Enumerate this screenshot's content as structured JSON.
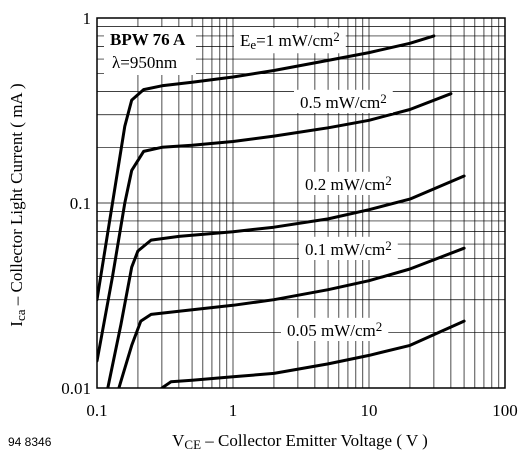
{
  "chart_data": {
    "type": "line",
    "log_x": true,
    "log_y": true,
    "grid": true,
    "xlim": [
      0.1,
      100
    ],
    "ylim": [
      0.01,
      1
    ],
    "xticks": [
      0.1,
      1,
      10,
      100
    ],
    "yticks": [
      0.01,
      0.1,
      1
    ],
    "xminor": [
      0.2,
      0.3,
      0.4,
      0.5,
      0.6,
      0.7,
      0.8,
      0.9,
      2,
      3,
      4,
      5,
      6,
      7,
      8,
      9,
      20,
      30,
      40,
      50,
      60,
      70,
      80,
      90
    ],
    "yminor": [
      0.02,
      0.03,
      0.04,
      0.05,
      0.06,
      0.07,
      0.08,
      0.09,
      0.2,
      0.3,
      0.4,
      0.5,
      0.6,
      0.7,
      0.8,
      0.9
    ],
    "device": "BPW 76 A",
    "wavelength": "λ=950nm",
    "figure_number": "94 8346",
    "x_label": [
      {
        "t": "V"
      },
      {
        "t": "CE",
        "s": "sub"
      },
      {
        "t": " – Collector Emitter Voltage ( V )"
      }
    ],
    "y_label": [
      {
        "t": "I"
      },
      {
        "t": "ca",
        "s": "sub"
      },
      {
        "t": " – Collector Light Current ( mA )"
      }
    ],
    "color": "#000000",
    "series": [
      {
        "name": [
          {
            "t": "E"
          },
          {
            "t": "e",
            "s": "sub"
          },
          {
            "t": "=1 mW/cm"
          },
          {
            "t": "2",
            "s": "sup"
          }
        ],
        "x": [
          0.1,
          0.13,
          0.16,
          0.18,
          0.22,
          0.3,
          0.5,
          1,
          2,
          5,
          10,
          20,
          30
        ],
        "values": [
          0.03,
          0.1,
          0.26,
          0.36,
          0.41,
          0.43,
          0.45,
          0.48,
          0.52,
          0.59,
          0.65,
          0.73,
          0.8
        ]
      },
      {
        "name": [
          {
            "t": "0.5 mW/cm"
          },
          {
            "t": "2",
            "s": "sup"
          }
        ],
        "x": [
          0.1,
          0.13,
          0.16,
          0.18,
          0.22,
          0.3,
          0.5,
          1,
          2,
          5,
          10,
          20,
          40
        ],
        "values": [
          0.014,
          0.04,
          0.1,
          0.15,
          0.19,
          0.2,
          0.205,
          0.215,
          0.23,
          0.255,
          0.28,
          0.32,
          0.39
        ]
      },
      {
        "name": [
          {
            "t": "0.2 mW/cm"
          },
          {
            "t": "2",
            "s": "sup"
          }
        ],
        "x": [
          0.12,
          0.15,
          0.18,
          0.2,
          0.25,
          0.4,
          1,
          2,
          5,
          10,
          20,
          50
        ],
        "values": [
          0.01,
          0.022,
          0.045,
          0.055,
          0.063,
          0.066,
          0.07,
          0.074,
          0.082,
          0.092,
          0.105,
          0.14
        ]
      },
      {
        "name": [
          {
            "t": "0.1 mW/cm"
          },
          {
            "t": "2",
            "s": "sup"
          }
        ],
        "x": [
          0.145,
          0.18,
          0.21,
          0.25,
          0.4,
          1,
          2,
          5,
          10,
          20,
          50
        ],
        "values": [
          0.01,
          0.017,
          0.023,
          0.025,
          0.026,
          0.028,
          0.03,
          0.034,
          0.038,
          0.044,
          0.057
        ]
      },
      {
        "name": [
          {
            "t": "0.05 mW/cm"
          },
          {
            "t": "2",
            "s": "sup"
          }
        ],
        "x": [
          0.3,
          0.35,
          0.5,
          1,
          2,
          5,
          10,
          20,
          50
        ],
        "values": [
          0.01,
          0.0108,
          0.011,
          0.0115,
          0.012,
          0.0135,
          0.015,
          0.017,
          0.023
        ]
      }
    ]
  }
}
